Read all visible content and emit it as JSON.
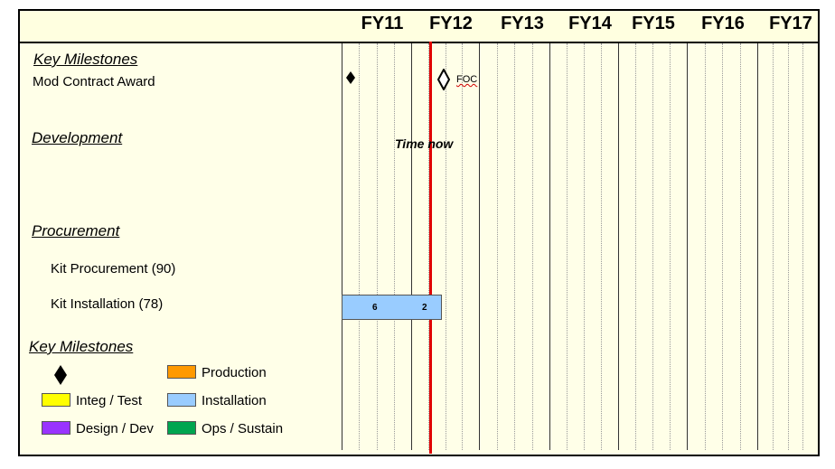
{
  "timeline": {
    "years": [
      "FY11",
      "FY12",
      "FY13",
      "FY14",
      "FY15",
      "FY16",
      "FY17"
    ],
    "now_label": "Time  now"
  },
  "sections": {
    "key_milestones": "Key Milestones",
    "mod_contract_award": "Mod Contract Award",
    "development": "Development",
    "procurement": "Procurement",
    "kit_procurement": "Kit Procurement (90)",
    "kit_installation": "Kit Installation (78)"
  },
  "milestones": {
    "foc_label": "FOC"
  },
  "bar": {
    "value_left": "6",
    "value_right": "2",
    "color": "#99ccff"
  },
  "legend": {
    "title": "Key Milestones",
    "items": [
      {
        "label": "Production",
        "color": "#ff9900"
      },
      {
        "label": "Integ / Test",
        "color": "#ffff00"
      },
      {
        "label": "Installation",
        "color": "#99ccff"
      },
      {
        "label": "Design / Dev",
        "color": "#9933ff"
      },
      {
        "label": "Ops / Sustain",
        "color": "#00a550"
      }
    ]
  },
  "colors": {
    "now_line": "#e00000",
    "background": "#ffffe8"
  }
}
